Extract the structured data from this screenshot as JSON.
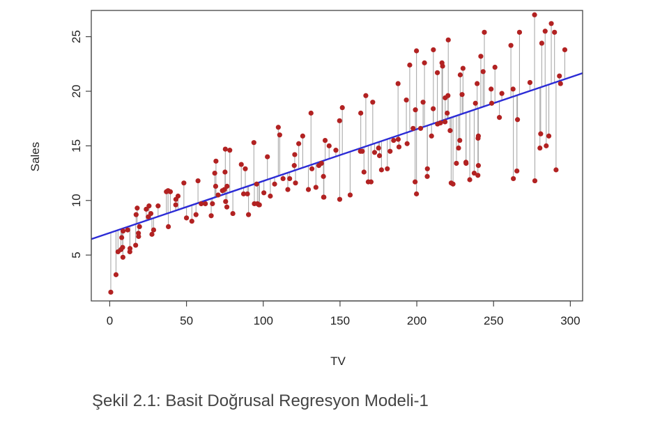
{
  "caption": "Şekil 2.1: Basit Doğrusal Regresyon Modeli-1",
  "chart_data": {
    "type": "scatter",
    "title": "",
    "xlabel": "TV",
    "ylabel": "Sales",
    "xlim": [
      -12,
      308
    ],
    "ylim": [
      0.8,
      27.4
    ],
    "xticks": [
      0,
      50,
      100,
      150,
      200,
      250,
      300
    ],
    "yticks": [
      5,
      10,
      15,
      20,
      25
    ],
    "grid": false,
    "regression_line": {
      "intercept": 7.03,
      "slope": 0.0475,
      "color": "#2b2bd6"
    },
    "residual_color": "#aaaaaa",
    "point_color": "#b22222",
    "points": [
      [
        0.7,
        1.6
      ],
      [
        4.1,
        3.2
      ],
      [
        5.4,
        5.3
      ],
      [
        7.3,
        5.5
      ],
      [
        8.4,
        5.7
      ],
      [
        8.6,
        4.8
      ],
      [
        7.8,
        6.6
      ],
      [
        8.7,
        7.2
      ],
      [
        11.7,
        7.3
      ],
      [
        13.1,
        5.3
      ],
      [
        13.2,
        5.6
      ],
      [
        16.9,
        5.9
      ],
      [
        17.2,
        8.7
      ],
      [
        17.9,
        9.3
      ],
      [
        18.8,
        6.7
      ],
      [
        19.4,
        7.6
      ],
      [
        18.7,
        7.0
      ],
      [
        23.8,
        9.2
      ],
      [
        25.1,
        8.5
      ],
      [
        25.6,
        9.5
      ],
      [
        27.5,
        6.9
      ],
      [
        28.6,
        7.3
      ],
      [
        26.8,
        8.8
      ],
      [
        31.5,
        9.5
      ],
      [
        36.9,
        10.8
      ],
      [
        38.0,
        10.9
      ],
      [
        38.2,
        7.6
      ],
      [
        39.5,
        10.8
      ],
      [
        43.0,
        9.6
      ],
      [
        43.1,
        10.1
      ],
      [
        44.5,
        10.4
      ],
      [
        48.3,
        11.6
      ],
      [
        50.0,
        8.4
      ],
      [
        53.5,
        8.1
      ],
      [
        56.2,
        8.7
      ],
      [
        57.5,
        11.8
      ],
      [
        59.6,
        9.7
      ],
      [
        62.3,
        9.7
      ],
      [
        66.1,
        8.6
      ],
      [
        66.9,
        9.7
      ],
      [
        68.4,
        12.5
      ],
      [
        69.0,
        11.3
      ],
      [
        69.2,
        13.6
      ],
      [
        70.6,
        10.5
      ],
      [
        73.4,
        10.9
      ],
      [
        74.7,
        11.0
      ],
      [
        75.1,
        12.6
      ],
      [
        75.3,
        14.7
      ],
      [
        75.5,
        9.9
      ],
      [
        76.4,
        11.3
      ],
      [
        76.3,
        9.4
      ],
      [
        78.2,
        14.6
      ],
      [
        80.2,
        8.8
      ],
      [
        85.7,
        13.3
      ],
      [
        87.2,
        10.6
      ],
      [
        88.3,
        12.9
      ],
      [
        89.7,
        10.6
      ],
      [
        90.4,
        8.7
      ],
      [
        93.9,
        15.3
      ],
      [
        94.2,
        9.7
      ],
      [
        95.7,
        11.5
      ],
      [
        96.2,
        9.7
      ],
      [
        97.2,
        9.6
      ],
      [
        97.5,
        9.6
      ],
      [
        100.4,
        10.7
      ],
      [
        102.7,
        14.0
      ],
      [
        104.6,
        10.4
      ],
      [
        107.4,
        11.5
      ],
      [
        109.8,
        16.7
      ],
      [
        110.7,
        16.0
      ],
      [
        112.9,
        12.0
      ],
      [
        116.0,
        11.0
      ],
      [
        117.2,
        12.0
      ],
      [
        120.2,
        13.2
      ],
      [
        120.5,
        14.2
      ],
      [
        121.0,
        11.6
      ],
      [
        123.1,
        15.2
      ],
      [
        125.7,
        15.9
      ],
      [
        129.4,
        11.0
      ],
      [
        131.1,
        18.0
      ],
      [
        131.7,
        12.9
      ],
      [
        134.3,
        11.2
      ],
      [
        136.2,
        13.2
      ],
      [
        137.9,
        13.4
      ],
      [
        139.2,
        12.2
      ],
      [
        139.3,
        10.3
      ],
      [
        139.5,
        10.3
      ],
      [
        140.3,
        15.5
      ],
      [
        142.9,
        15.0
      ],
      [
        147.3,
        14.6
      ],
      [
        149.7,
        17.3
      ],
      [
        149.8,
        10.1
      ],
      [
        151.5,
        18.5
      ],
      [
        156.6,
        10.5
      ],
      [
        163.3,
        14.5
      ],
      [
        163.5,
        18.0
      ],
      [
        164.5,
        14.5
      ],
      [
        165.6,
        12.6
      ],
      [
        166.8,
        19.6
      ],
      [
        168.4,
        11.7
      ],
      [
        170.2,
        11.7
      ],
      [
        171.3,
        19.0
      ],
      [
        172.5,
        14.4
      ],
      [
        175.1,
        14.8
      ],
      [
        175.7,
        14.1
      ],
      [
        177.0,
        12.8
      ],
      [
        180.8,
        12.9
      ],
      [
        182.6,
        14.5
      ],
      [
        184.9,
        15.5
      ],
      [
        187.8,
        20.7
      ],
      [
        187.9,
        15.6
      ],
      [
        188.4,
        14.9
      ],
      [
        193.2,
        19.2
      ],
      [
        193.7,
        15.2
      ],
      [
        195.4,
        22.4
      ],
      [
        197.6,
        16.6
      ],
      [
        198.9,
        11.7
      ],
      [
        199.1,
        18.3
      ],
      [
        199.8,
        23.7
      ],
      [
        199.8,
        10.6
      ],
      [
        202.5,
        16.6
      ],
      [
        204.1,
        19.0
      ],
      [
        205.0,
        22.6
      ],
      [
        206.8,
        12.2
      ],
      [
        206.9,
        12.9
      ],
      [
        209.6,
        15.9
      ],
      [
        210.7,
        18.4
      ],
      [
        210.8,
        23.8
      ],
      [
        213.4,
        21.7
      ],
      [
        213.5,
        17.0
      ],
      [
        215.4,
        17.1
      ],
      [
        216.4,
        22.6
      ],
      [
        216.8,
        22.3
      ],
      [
        218.4,
        17.2
      ],
      [
        218.5,
        19.4
      ],
      [
        219.8,
        18.0
      ],
      [
        220.3,
        19.6
      ],
      [
        220.5,
        24.7
      ],
      [
        222.4,
        11.6
      ],
      [
        223.6,
        11.5
      ],
      [
        225.8,
        13.4
      ],
      [
        227.2,
        14.8
      ],
      [
        228.0,
        15.5
      ],
      [
        228.3,
        21.5
      ],
      [
        229.5,
        19.7
      ],
      [
        230.1,
        22.1
      ],
      [
        232.1,
        13.4
      ],
      [
        234.5,
        11.9
      ],
      [
        237.4,
        12.5
      ],
      [
        238.2,
        18.9
      ],
      [
        239.3,
        20.7
      ],
      [
        239.8,
        12.3
      ],
      [
        239.9,
        15.7
      ],
      [
        240.1,
        13.2
      ],
      [
        240.1,
        15.9
      ],
      [
        241.7,
        23.2
      ],
      [
        243.2,
        21.8
      ],
      [
        248.4,
        20.2
      ],
      [
        248.8,
        18.9
      ],
      [
        250.9,
        22.2
      ],
      [
        253.8,
        17.6
      ],
      [
        255.4,
        19.8
      ],
      [
        261.3,
        24.2
      ],
      [
        262.7,
        20.2
      ],
      [
        262.9,
        12.0
      ],
      [
        265.2,
        12.7
      ],
      [
        265.6,
        17.4
      ],
      [
        266.9,
        25.4
      ],
      [
        273.7,
        20.8
      ],
      [
        276.7,
        27.0
      ],
      [
        276.9,
        11.8
      ],
      [
        280.2,
        14.8
      ],
      [
        281.4,
        24.4
      ],
      [
        283.6,
        25.5
      ],
      [
        284.3,
        15.0
      ],
      [
        286.0,
        15.9
      ],
      [
        287.6,
        26.2
      ],
      [
        289.7,
        25.4
      ],
      [
        290.7,
        12.8
      ],
      [
        292.9,
        21.4
      ],
      [
        293.6,
        20.7
      ],
      [
        296.4,
        23.8
      ],
      [
        280.7,
        16.1
      ],
      [
        232.0,
        13.5
      ],
      [
        244.0,
        25.4
      ],
      [
        221.7,
        16.4
      ]
    ]
  }
}
